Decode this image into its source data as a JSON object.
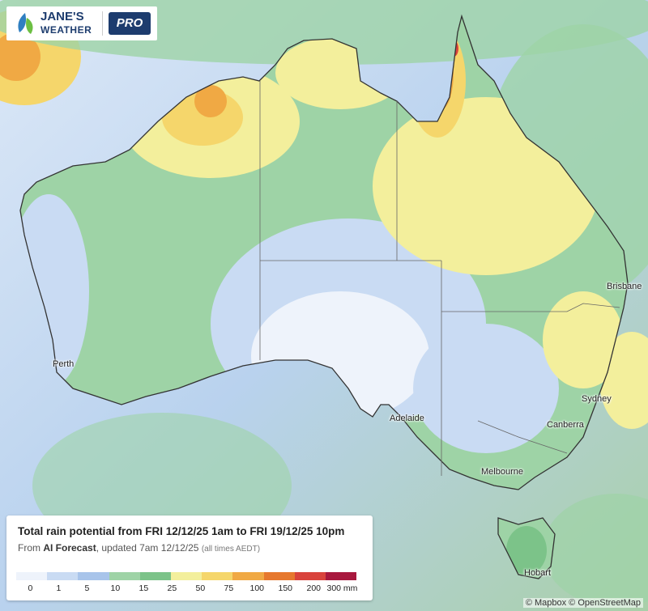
{
  "logo": {
    "name": "JANE'S",
    "sub": "WEATHER",
    "badge": "PRO"
  },
  "cities": [
    {
      "label": "Brisbane"
    },
    {
      "label": "Perth"
    },
    {
      "label": "Sydney"
    },
    {
      "label": "Canberra"
    },
    {
      "label": "Adelaide"
    },
    {
      "label": "Melbourne"
    },
    {
      "label": "Hobart"
    }
  ],
  "legend": {
    "title": "Total rain potential from FRI 12/12/25 1am to FRI 19/12/25 10pm",
    "subtitle": {
      "prefix": "From ",
      "source": "AI Forecast",
      "middle": ", updated 7am 12/12/25 ",
      "note": "(all times AEDT)"
    },
    "labels": [
      "0",
      "1",
      "5",
      "10",
      "15",
      "25",
      "50",
      "75",
      "100",
      "150",
      "200",
      "300 mm"
    ],
    "colors": [
      "#eef3fb",
      "#c9dbf3",
      "#a8c4ea",
      "#9ed3a6",
      "#7cc389",
      "#f3ef9c",
      "#f5d66b",
      "#f0a944",
      "#e6782e",
      "#d9433c",
      "#a8183e"
    ]
  },
  "attribution": "© Mapbox © OpenStreetMap"
}
